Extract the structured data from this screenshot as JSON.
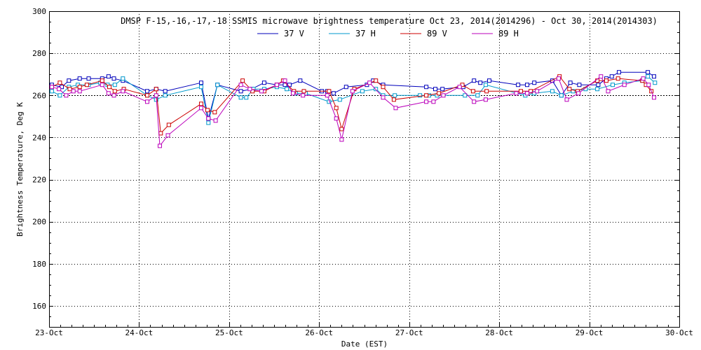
{
  "chart_data": {
    "type": "line",
    "title": "DMSP F-15,-16,-17,-18 SSMIS microwave brightness temperature Oct 23, 2014(2014296) - Oct 30, 2014(2014303)",
    "xlabel": "Date (EST)",
    "ylabel": "Brightness Temperature, Deg K",
    "xlim": [
      0,
      7
    ],
    "ylim": [
      150,
      300
    ],
    "xtick_values": [
      0,
      1,
      2,
      3,
      4,
      5,
      6,
      7
    ],
    "xtick_labels": [
      "23-Oct",
      "24-Oct",
      "25-Oct",
      "26-Oct",
      "27-Oct",
      "28-Oct",
      "29-Oct",
      "30-Oct"
    ],
    "ytick_values": [
      160,
      180,
      200,
      220,
      240,
      260,
      280,
      300
    ],
    "ytick_labels": [
      "160",
      "180",
      "200",
      "220",
      "240",
      "260",
      "280",
      "300"
    ],
    "hline": 260,
    "grid": true,
    "legend_position": "top-center",
    "series": [
      {
        "name": "37 V",
        "color": "#0000bb",
        "x": [
          0.03,
          0.14,
          0.22,
          0.34,
          0.44,
          0.59,
          0.66,
          0.72,
          0.82,
          1.09,
          1.19,
          1.29,
          1.69,
          1.77,
          1.87,
          2.13,
          2.25,
          2.39,
          2.53,
          2.62,
          2.67,
          2.79,
          3.03,
          3.09,
          3.16,
          3.3,
          3.53,
          3.6,
          3.71,
          4.19,
          4.29,
          4.37,
          4.6,
          4.72,
          4.79,
          4.89,
          5.21,
          5.31,
          5.39,
          5.59,
          5.69,
          5.79,
          5.89,
          6.1,
          6.19,
          6.25,
          6.33,
          6.65,
          6.72
        ],
        "values": [
          265,
          264,
          267,
          268,
          268,
          268,
          269,
          268,
          267,
          262,
          263,
          262,
          266,
          249,
          265,
          262,
          263,
          266,
          265,
          265,
          265,
          267,
          262,
          262,
          261,
          264,
          265,
          267,
          265,
          264,
          263,
          263,
          264,
          267,
          266,
          267,
          265,
          265,
          266,
          267,
          260,
          266,
          265,
          265,
          268,
          269,
          271,
          271,
          269
        ]
      },
      {
        "name": "37 H",
        "color": "#0099cc",
        "x": [
          0.03,
          0.12,
          0.22,
          0.32,
          0.44,
          0.57,
          0.65,
          0.73,
          0.82,
          1.09,
          1.19,
          1.29,
          1.69,
          1.77,
          1.87,
          2.13,
          2.19,
          2.27,
          2.39,
          2.53,
          2.64,
          2.74,
          2.85,
          3.11,
          3.23,
          3.48,
          3.63,
          3.71,
          3.84,
          4.12,
          4.22,
          4.31,
          4.62,
          4.76,
          4.85,
          5.29,
          5.39,
          5.59,
          5.69,
          5.82,
          5.96,
          6.09,
          6.26,
          6.39,
          6.59,
          6.65,
          6.73
        ],
        "values": [
          262,
          260,
          264,
          265,
          265,
          266,
          265,
          265,
          268,
          260,
          258,
          260,
          264,
          247,
          265,
          259,
          259,
          263,
          263,
          264,
          263,
          261,
          261,
          257,
          258,
          262,
          263,
          260,
          260,
          260,
          260,
          260,
          260,
          260,
          265,
          260,
          261,
          262,
          260,
          262,
          263,
          263,
          265,
          266,
          267,
          269,
          266
        ]
      },
      {
        "name": "89 V",
        "color": "#cc0000",
        "x": [
          0.03,
          0.12,
          0.23,
          0.34,
          0.42,
          0.59,
          0.67,
          0.73,
          0.83,
          1.09,
          1.19,
          1.24,
          1.33,
          1.69,
          1.76,
          1.84,
          2.15,
          2.26,
          2.39,
          2.53,
          2.6,
          2.72,
          2.83,
          3.11,
          3.19,
          3.25,
          3.39,
          3.63,
          3.71,
          3.83,
          4.19,
          4.33,
          4.59,
          4.71,
          4.86,
          5.24,
          5.35,
          5.67,
          5.78,
          5.87,
          6.09,
          6.19,
          6.32,
          6.59,
          6.63,
          6.69
        ],
        "values": [
          264,
          266,
          263,
          264,
          265,
          267,
          264,
          262,
          263,
          260,
          263,
          242,
          246,
          256,
          253,
          252,
          267,
          262,
          262,
          265,
          267,
          262,
          262,
          262,
          254,
          244,
          263,
          267,
          264,
          258,
          260,
          261,
          265,
          262,
          262,
          262,
          262,
          269,
          263,
          262,
          267,
          267,
          268,
          267,
          265,
          262
        ]
      },
      {
        "name": "89 H",
        "color": "#bb00bb",
        "x": [
          0.03,
          0.11,
          0.19,
          0.27,
          0.34,
          0.59,
          0.66,
          0.72,
          0.82,
          1.09,
          1.19,
          1.23,
          1.32,
          1.69,
          1.77,
          1.85,
          2.13,
          2.23,
          2.36,
          2.53,
          2.62,
          2.71,
          2.82,
          3.09,
          3.19,
          3.25,
          3.37,
          3.56,
          3.71,
          3.85,
          4.19,
          4.27,
          4.38,
          4.56,
          4.72,
          4.85,
          5.19,
          5.31,
          5.42,
          5.66,
          5.75,
          5.88,
          6.13,
          6.21,
          6.39,
          6.6,
          6.66,
          6.72
        ],
        "values": [
          264,
          263,
          260,
          262,
          262,
          265,
          261,
          260,
          262,
          257,
          260,
          236,
          241,
          254,
          249,
          248,
          265,
          263,
          262,
          265,
          267,
          261,
          260,
          260,
          249,
          239,
          262,
          266,
          259,
          254,
          257,
          257,
          260,
          264,
          257,
          258,
          261,
          261,
          262,
          268,
          258,
          261,
          269,
          262,
          265,
          268,
          265,
          259
        ]
      }
    ]
  }
}
